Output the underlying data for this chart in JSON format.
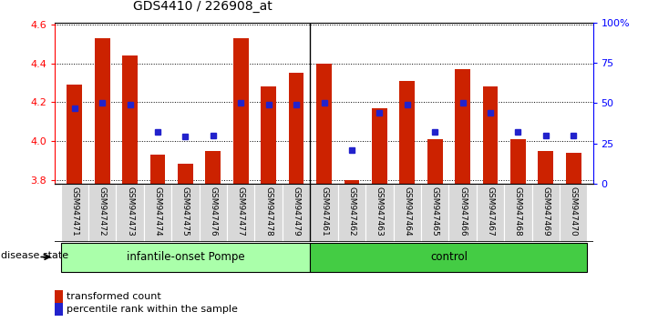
{
  "title": "GDS4410 / 226908_at",
  "samples": [
    "GSM947471",
    "GSM947472",
    "GSM947473",
    "GSM947474",
    "GSM947475",
    "GSM947476",
    "GSM947477",
    "GSM947478",
    "GSM947479",
    "GSM947461",
    "GSM947462",
    "GSM947463",
    "GSM947464",
    "GSM947465",
    "GSM947466",
    "GSM947467",
    "GSM947468",
    "GSM947469",
    "GSM947470"
  ],
  "transformed_count": [
    4.29,
    4.53,
    4.44,
    3.93,
    3.88,
    3.95,
    4.53,
    4.28,
    4.35,
    4.4,
    3.8,
    4.17,
    4.31,
    4.01,
    4.37,
    4.28,
    4.01,
    3.95,
    3.94
  ],
  "percentile_rank": [
    47,
    50,
    49,
    32,
    29,
    30,
    50,
    49,
    49,
    50,
    21,
    44,
    49,
    32,
    50,
    44,
    32,
    30,
    30
  ],
  "bar_color": "#cc2200",
  "dot_color": "#2222cc",
  "ylim_left": [
    3.78,
    4.61
  ],
  "ylim_right": [
    0,
    100
  ],
  "yticks_left": [
    3.8,
    4.0,
    4.2,
    4.4,
    4.6
  ],
  "yticks_right": [
    0,
    25,
    50,
    75,
    100
  ],
  "ytick_labels_right": [
    "0",
    "25",
    "50",
    "75",
    "100%"
  ],
  "group1_label": "infantile-onset Pompe",
  "group2_label": "control",
  "group1_indices": [
    0,
    1,
    2,
    3,
    4,
    5,
    6,
    7,
    8
  ],
  "group2_indices": [
    9,
    10,
    11,
    12,
    13,
    14,
    15,
    16,
    17,
    18
  ],
  "group1_color": "#aaffaa",
  "group2_color": "#44cc44",
  "disease_state_label": "disease state",
  "legend1_label": "transformed count",
  "legend2_label": "percentile rank within the sample",
  "bar_width": 0.55,
  "baseline": 3.78,
  "separator_index": 9,
  "bg_gray": "#d8d8d8"
}
